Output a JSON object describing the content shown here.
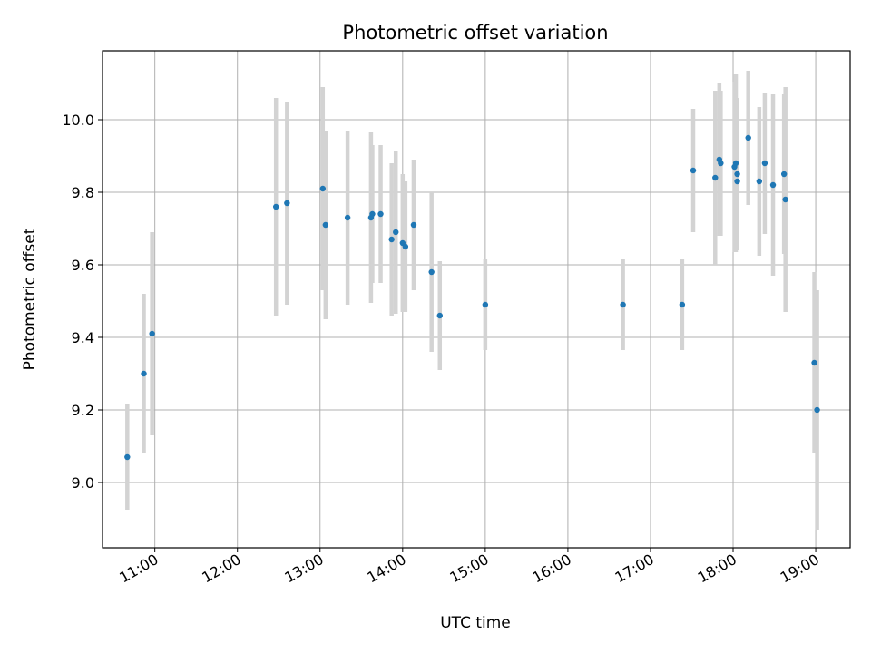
{
  "chart_data": {
    "type": "scatter",
    "title": "Photometric offset variation",
    "xlabel": "UTC time",
    "ylabel": "Photometric offset",
    "x_unit": "hours",
    "xlim": [
      "10:22",
      "19:25"
    ],
    "ylim": [
      8.82,
      10.19
    ],
    "x_ticks": [
      "11:00",
      "12:00",
      "13:00",
      "14:00",
      "15:00",
      "16:00",
      "17:00",
      "18:00",
      "19:00"
    ],
    "y_ticks": [
      "9.0",
      "9.2",
      "9.4",
      "9.6",
      "9.8",
      "10.0"
    ],
    "grid": true,
    "marker_color": "#1f77b4",
    "errorbar_color": "#d3d3d3",
    "points": [
      {
        "time": "10:40",
        "value": 9.07,
        "err": 0.145
      },
      {
        "time": "10:52",
        "value": 9.3,
        "err": 0.22
      },
      {
        "time": "10:58",
        "value": 9.41,
        "err": 0.28
      },
      {
        "time": "12:28",
        "value": 9.76,
        "err": 0.3
      },
      {
        "time": "12:36",
        "value": 9.77,
        "err": 0.28
      },
      {
        "time": "13:02",
        "value": 9.81,
        "err": 0.28
      },
      {
        "time": "13:04",
        "value": 9.71,
        "err": 0.26
      },
      {
        "time": "13:20",
        "value": 9.73,
        "err": 0.24
      },
      {
        "time": "13:37",
        "value": 9.73,
        "err": 0.235
      },
      {
        "time": "13:38",
        "value": 9.74,
        "err": 0.19
      },
      {
        "time": "13:44",
        "value": 9.74,
        "err": 0.19
      },
      {
        "time": "13:52",
        "value": 9.67,
        "err": 0.21
      },
      {
        "time": "13:55",
        "value": 9.69,
        "err": 0.225
      },
      {
        "time": "14:00",
        "value": 9.66,
        "err": 0.19
      },
      {
        "time": "14:02",
        "value": 9.65,
        "err": 0.18
      },
      {
        "time": "14:08",
        "value": 9.71,
        "err": 0.18
      },
      {
        "time": "14:21",
        "value": 9.58,
        "err": 0.22
      },
      {
        "time": "14:27",
        "value": 9.46,
        "err": 0.15
      },
      {
        "time": "15:00",
        "value": 9.49,
        "err": 0.125
      },
      {
        "time": "16:40",
        "value": 9.49,
        "err": 0.125
      },
      {
        "time": "17:23",
        "value": 9.49,
        "err": 0.125
      },
      {
        "time": "17:31",
        "value": 9.86,
        "err": 0.17
      },
      {
        "time": "17:47",
        "value": 9.84,
        "err": 0.24
      },
      {
        "time": "17:50",
        "value": 9.89,
        "err": 0.21
      },
      {
        "time": "17:51",
        "value": 9.88,
        "err": 0.2
      },
      {
        "time": "18:01",
        "value": 9.87,
        "err": 0.235
      },
      {
        "time": "18:02",
        "value": 9.88,
        "err": 0.245
      },
      {
        "time": "18:03",
        "value": 9.85,
        "err": 0.21
      },
      {
        "time": "18:03",
        "value": 9.83,
        "err": 0.19
      },
      {
        "time": "18:11",
        "value": 9.95,
        "err": 0.185
      },
      {
        "time": "18:19",
        "value": 9.83,
        "err": 0.205
      },
      {
        "time": "18:23",
        "value": 9.88,
        "err": 0.195
      },
      {
        "time": "18:29",
        "value": 9.82,
        "err": 0.25
      },
      {
        "time": "18:37",
        "value": 9.85,
        "err": 0.22
      },
      {
        "time": "18:38",
        "value": 9.78,
        "err": 0.31
      },
      {
        "time": "18:59",
        "value": 9.33,
        "err": 0.25
      },
      {
        "time": "19:01",
        "value": 9.2,
        "err": 0.33
      }
    ]
  }
}
